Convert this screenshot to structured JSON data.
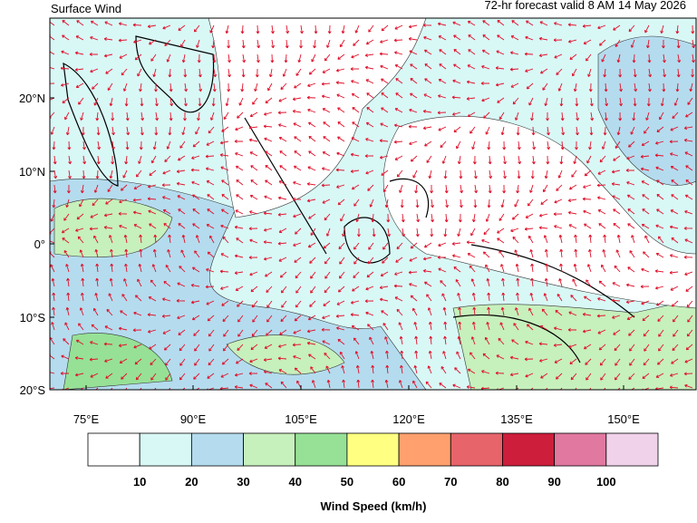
{
  "header": {
    "title": "Surface Wind",
    "subtitle": "72-hr forecast valid 8 AM 14 May 2026"
  },
  "map": {
    "lat_labels": [
      "20°N",
      "10°N",
      "0°",
      "10°S",
      "20°S"
    ],
    "lon_labels": [
      "75°E",
      "90°E",
      "105°E",
      "120°E",
      "135°E",
      "150°E"
    ]
  },
  "legend": {
    "title": "Wind Speed (km/h)",
    "colors": [
      "#ffffff",
      "#d8f8f6",
      "#b4dcee",
      "#c6f0bc",
      "#96e196",
      "#ffff82",
      "#ffa06e",
      "#e6646a",
      "#cd1e3c",
      "#e178a0",
      "#f0d2ea"
    ],
    "ticks": [
      10,
      20,
      30,
      40,
      50,
      60,
      70,
      80,
      90,
      100
    ]
  }
}
